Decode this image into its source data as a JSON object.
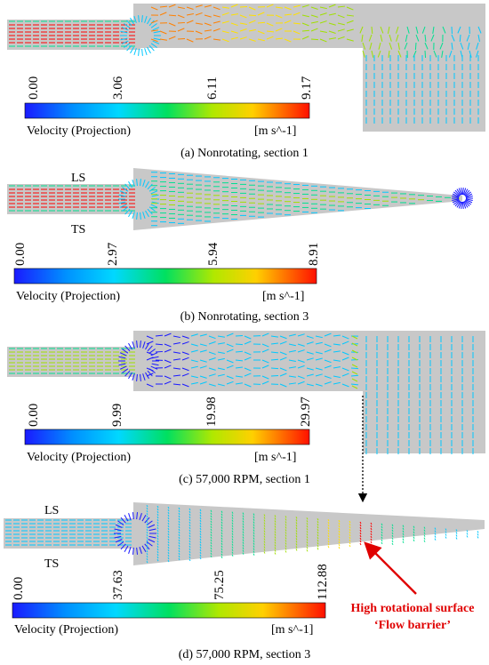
{
  "colors": {
    "domain": "#c8c8c8",
    "scale": [
      "#1a1aff",
      "#00c8ff",
      "#00e090",
      "#a0e000",
      "#ffe000",
      "#ff8000",
      "#ff0000"
    ],
    "annotation": "#e00000"
  },
  "panels": [
    {
      "caption": "(a) Nonrotating, section 1",
      "legend": {
        "title": "Velocity (Projection)",
        "unit": "[m s^-1]",
        "ticks": [
          "0.00",
          "3.06",
          "6.11",
          "9.17"
        ]
      }
    },
    {
      "caption": "(b) Nonrotating, section 3",
      "side_labels": {
        "top": "LS",
        "bottom": "TS"
      },
      "legend": {
        "title": "Velocity (Projection)",
        "unit": "[m s^-1]",
        "ticks": [
          "0.00",
          "2.97",
          "5.94",
          "8.91"
        ]
      }
    },
    {
      "caption": "(c) 57,000 RPM, section 1",
      "legend": {
        "title": "Velocity (Projection)",
        "unit": "[m s^-1]",
        "ticks": [
          "0.00",
          "9.99",
          "19.98",
          "29.97"
        ]
      }
    },
    {
      "caption": "(d) 57,000 RPM, section 3",
      "side_labels": {
        "top": "LS",
        "bottom": "TS"
      },
      "legend": {
        "title": "Velocity (Projection)",
        "unit": "[m s^-1]",
        "ticks": [
          "0.00",
          "37.63",
          "75.25",
          "112.88"
        ]
      },
      "annotation": {
        "line1": "High rotational surface",
        "line2": "‘Flow barrier’"
      }
    }
  ]
}
